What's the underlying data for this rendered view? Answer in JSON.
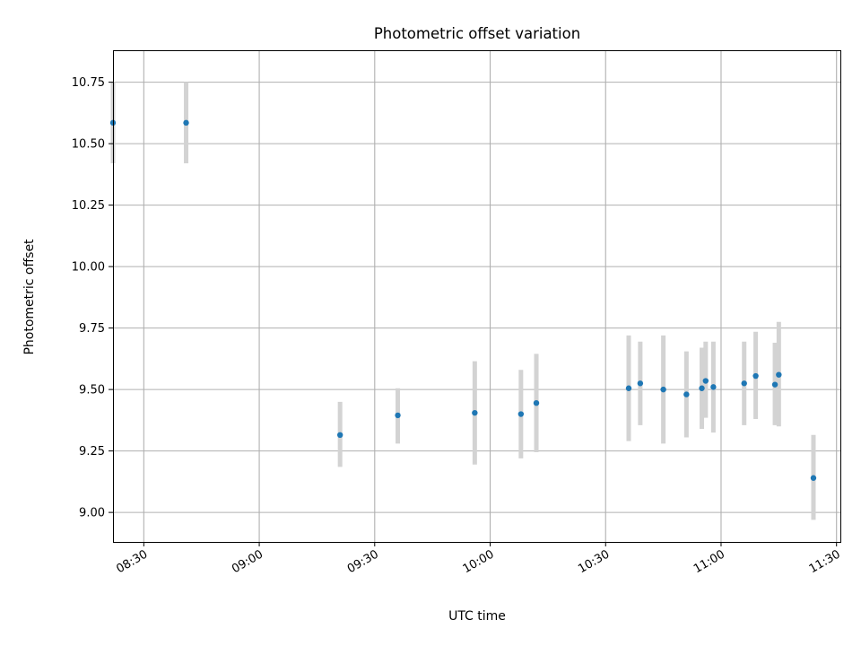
{
  "chart_data": {
    "type": "scatter",
    "title": "Photometric offset variation",
    "xlabel": "UTC time",
    "ylabel": "Photometric offset",
    "x_ticks": [
      "08:30",
      "09:00",
      "09:30",
      "10:00",
      "10:30",
      "11:00",
      "11:30"
    ],
    "y_ticks": [
      "9.00",
      "9.25",
      "9.50",
      "9.75",
      "10.00",
      "10.25",
      "10.50",
      "10.75"
    ],
    "xlim": [
      "08:22",
      "11:31"
    ],
    "ylim": [
      8.88,
      10.88
    ],
    "grid": true,
    "colors": {
      "point": "#1f77b4",
      "errorbar": "#d3d3d3"
    },
    "points": [
      {
        "x": "08:22",
        "y": 10.585,
        "yerr_low": 10.42,
        "yerr_high": 10.75
      },
      {
        "x": "08:41",
        "y": 10.585,
        "yerr_low": 10.42,
        "yerr_high": 10.75
      },
      {
        "x": "09:21",
        "y": 9.315,
        "yerr_low": 9.185,
        "yerr_high": 9.45
      },
      {
        "x": "09:36",
        "y": 9.395,
        "yerr_low": 9.28,
        "yerr_high": 9.505
      },
      {
        "x": "09:56",
        "y": 9.405,
        "yerr_low": 9.195,
        "yerr_high": 9.615
      },
      {
        "x": "10:08",
        "y": 9.4,
        "yerr_low": 9.22,
        "yerr_high": 9.58
      },
      {
        "x": "10:12",
        "y": 9.445,
        "yerr_low": 9.245,
        "yerr_high": 9.645
      },
      {
        "x": "10:36",
        "y": 9.505,
        "yerr_low": 9.29,
        "yerr_high": 9.72
      },
      {
        "x": "10:39",
        "y": 9.525,
        "yerr_low": 9.355,
        "yerr_high": 9.695
      },
      {
        "x": "10:45",
        "y": 9.5,
        "yerr_low": 9.28,
        "yerr_high": 9.72
      },
      {
        "x": "10:51",
        "y": 9.48,
        "yerr_low": 9.305,
        "yerr_high": 9.655
      },
      {
        "x": "10:55",
        "y": 9.505,
        "yerr_low": 9.34,
        "yerr_high": 9.67
      },
      {
        "x": "10:56",
        "y": 9.535,
        "yerr_low": 9.385,
        "yerr_high": 9.695
      },
      {
        "x": "10:58",
        "y": 9.51,
        "yerr_low": 9.325,
        "yerr_high": 9.695
      },
      {
        "x": "11:06",
        "y": 9.525,
        "yerr_low": 9.355,
        "yerr_high": 9.695
      },
      {
        "x": "11:09",
        "y": 9.555,
        "yerr_low": 9.38,
        "yerr_high": 9.735
      },
      {
        "x": "11:14",
        "y": 9.52,
        "yerr_low": 9.355,
        "yerr_high": 9.69
      },
      {
        "x": "11:15",
        "y": 9.56,
        "yerr_low": 9.35,
        "yerr_high": 9.775
      },
      {
        "x": "11:24",
        "y": 9.14,
        "yerr_low": 8.97,
        "yerr_high": 9.315
      }
    ]
  }
}
